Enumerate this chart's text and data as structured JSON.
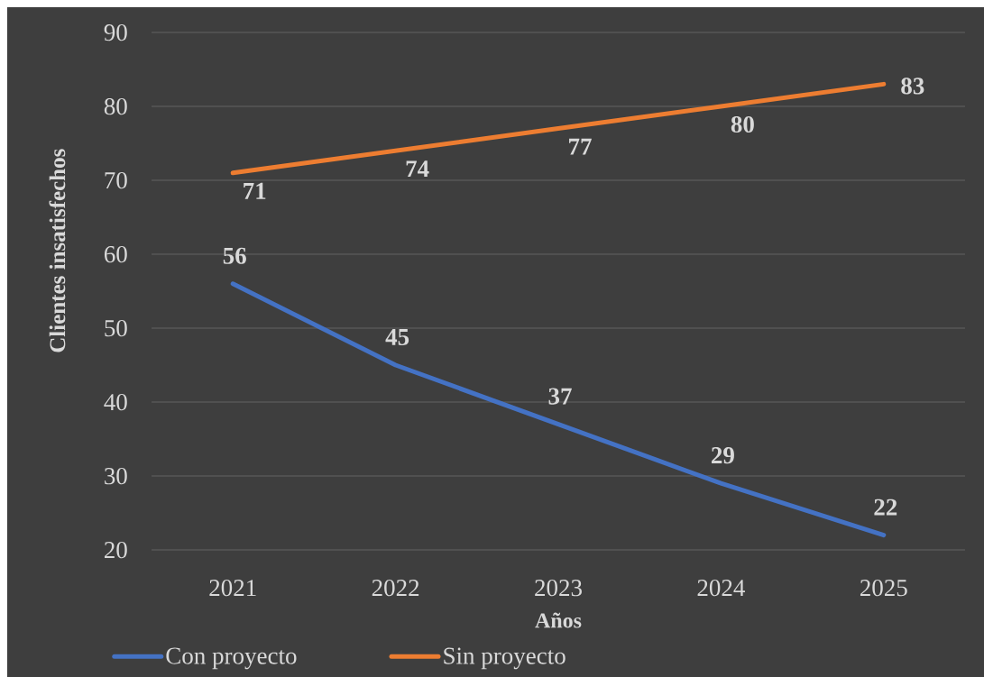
{
  "chart_data": {
    "type": "line",
    "xlabel": "Años",
    "ylabel": "Clientes insatisfechos",
    "categories": [
      "2021",
      "2022",
      "2023",
      "2024",
      "2025"
    ],
    "series": [
      {
        "name": "Con proyecto",
        "color": "#4472c4",
        "values": [
          56,
          45,
          37,
          29,
          22
        ]
      },
      {
        "name": "Sin proyecto",
        "color": "#ed7d31",
        "values": [
          71,
          74,
          77,
          80,
          83
        ]
      }
    ],
    "ylim": [
      20,
      90
    ],
    "yticks": [
      20,
      30,
      40,
      50,
      60,
      70,
      80,
      90
    ],
    "grid": "y",
    "legend": "bottom",
    "data_labels": true,
    "line_style": "solid"
  }
}
